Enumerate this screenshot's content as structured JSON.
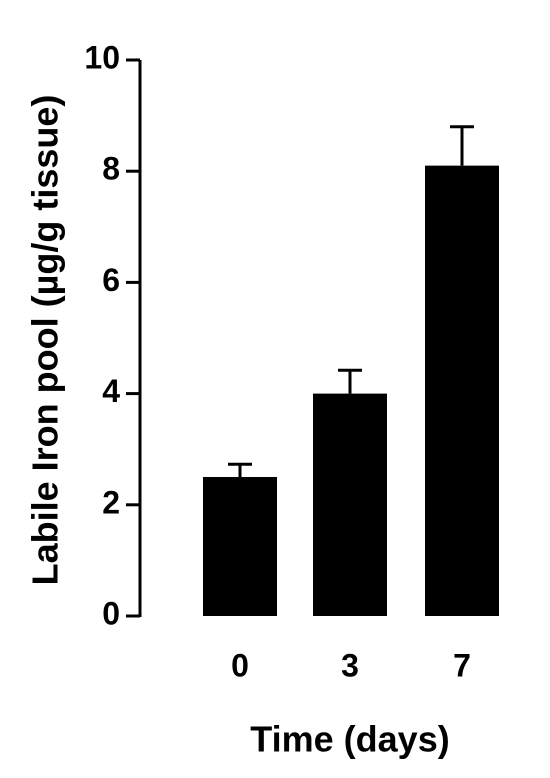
{
  "chart_data": {
    "type": "bar",
    "y_label": "Labile Iron pool (µg/g tissue)",
    "x_label": "Time (days)",
    "categories": [
      "0",
      "3",
      "7"
    ],
    "values": [
      2.5,
      4.0,
      8.1
    ],
    "errors": [
      0.23,
      0.42,
      0.7
    ],
    "color": "#000000",
    "ylim": [
      0,
      10
    ],
    "yticks": [
      0,
      2,
      4,
      6,
      8,
      10
    ],
    "grid": false
  }
}
